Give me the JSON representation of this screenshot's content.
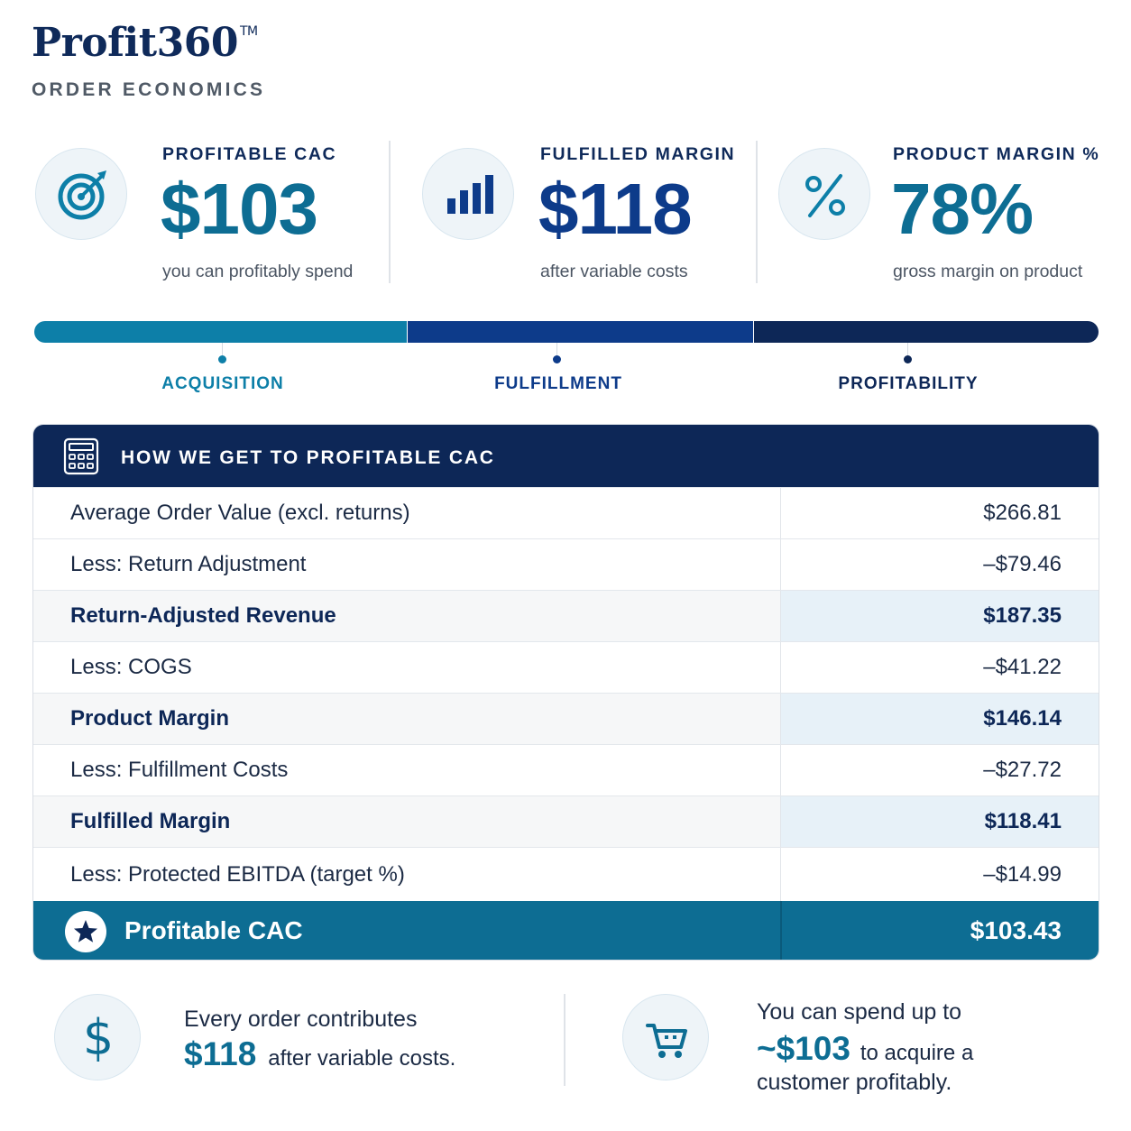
{
  "brand": {
    "name": "Profit360",
    "trademark": "TM",
    "subtitle": "ORDER ECONOMICS"
  },
  "kpis": [
    {
      "label": "PROFITABLE CAC",
      "value": "$103",
      "caption": "you can profitably spend",
      "icon": "target-icon",
      "color": "#0d6d93"
    },
    {
      "label": "FULFILLED MARGIN",
      "value": "$118",
      "caption": "after variable costs",
      "icon": "bar-chart-icon",
      "color": "#0d3b8a"
    },
    {
      "label": "PRODUCT MARGIN %",
      "value": "78%",
      "caption": "gross margin on product",
      "icon": "percent-icon",
      "color": "#0d6d93"
    }
  ],
  "stages": [
    {
      "label": "ACQUISITION",
      "color": "#0d7fa8"
    },
    {
      "label": "FULFILLMENT",
      "color": "#0d3b8a"
    },
    {
      "label": "PROFITABILITY",
      "color": "#0d2757"
    }
  ],
  "table": {
    "title": "HOW WE GET TO PROFITABLE CAC",
    "icon": "calculator-icon",
    "rows": [
      {
        "label": "Average Order Value (excl. returns)",
        "value": "$266.81",
        "bold": false
      },
      {
        "label": "Less: Return Adjustment",
        "value": "–$79.46",
        "bold": false
      },
      {
        "label": "Return-Adjusted Revenue",
        "value": "$187.35",
        "bold": true
      },
      {
        "label": "Less: COGS",
        "value": "–$41.22",
        "bold": false
      },
      {
        "label": "Product Margin",
        "value": "$146.14",
        "bold": true
      },
      {
        "label": "Less: Fulfillment Costs",
        "value": "–$27.72",
        "bold": false
      },
      {
        "label": "Fulfilled Margin",
        "value": "$118.41",
        "bold": true
      },
      {
        "label": "Less: Protected EBITDA (target %)",
        "value": "–$14.99",
        "bold": false
      }
    ],
    "total": {
      "label": "Profitable CAC",
      "value": "$103.43",
      "icon": "star-icon"
    }
  },
  "footer": {
    "left": {
      "line1": "Every order contributes",
      "big": "$118",
      "line2": "after variable costs.",
      "icon": "dollar-icon"
    },
    "right": {
      "line1": "You can spend up to",
      "big": "~$103",
      "line2": "to acquire a",
      "line3": "customer profitably.",
      "icon": "cart-icon"
    }
  }
}
